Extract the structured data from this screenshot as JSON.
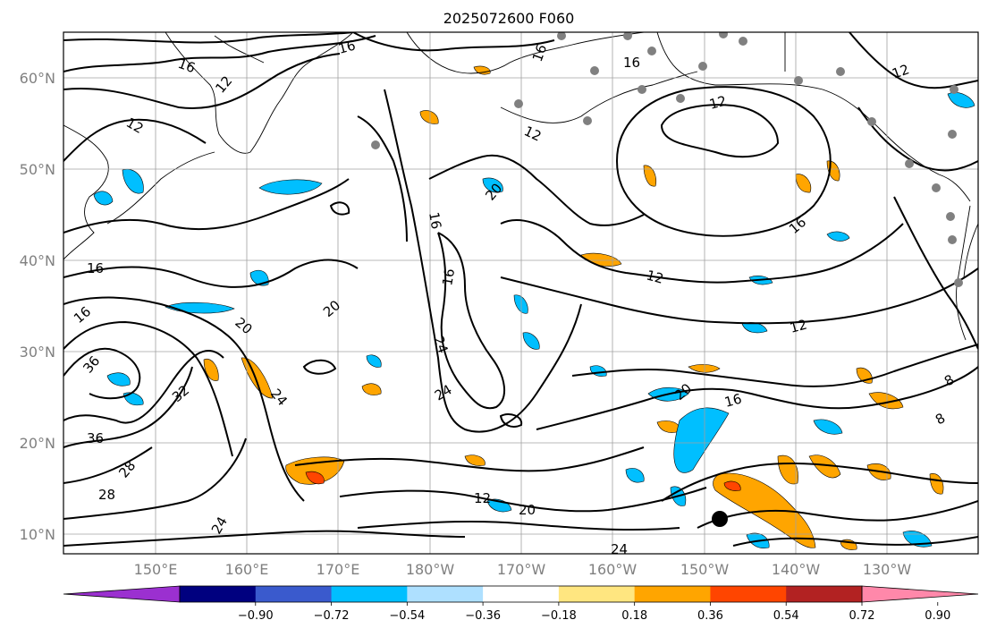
{
  "title": "2025072600 F060",
  "lat_labels": [
    "60°N",
    "50°N",
    "40°N",
    "30°N",
    "20°N",
    "10°N"
  ],
  "lon_labels": [
    "150°E",
    "160°E",
    "170°E",
    "180°W",
    "170°W",
    "160°W",
    "150°W",
    "140°W",
    "130°W"
  ],
  "colorbar": {
    "ticks": [
      "−0.90",
      "−0.72",
      "−0.54",
      "−0.36",
      "−0.18",
      "0.18",
      "0.36",
      "0.54",
      "0.72",
      "0.90"
    ],
    "colors": [
      "#9b30d0",
      "#00007f",
      "#3a5acd",
      "#00bfff",
      "#aee0ff",
      "#ffffff",
      "#ffe680",
      "#ffa500",
      "#ff4500",
      "#b22222",
      "#ff88aa"
    ]
  },
  "contour_labels": [
    "16",
    "16",
    "12",
    "12",
    "16",
    "16",
    "12",
    "12",
    "20",
    "16",
    "16",
    "24",
    "16",
    "20",
    "20",
    "16",
    "36",
    "32",
    "24",
    "20",
    "36",
    "28",
    "24",
    "24",
    "20",
    "16",
    "12",
    "12",
    "12",
    "16",
    "8",
    "8",
    "28",
    "12",
    "20",
    "24"
  ],
  "colors": {
    "negative": "#00bfff",
    "positive": "#ffa500",
    "strong_positive": "#ff4500",
    "station": "#808080"
  }
}
